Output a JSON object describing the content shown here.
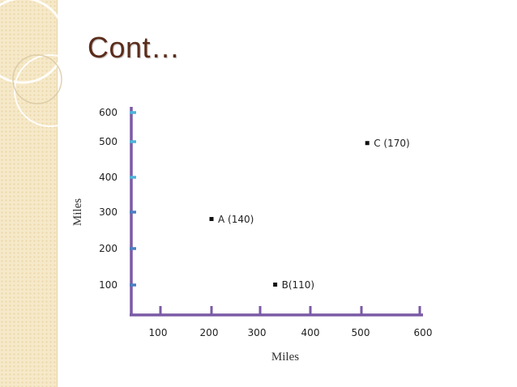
{
  "slide": {
    "title": "Cont…"
  },
  "colors": {
    "axis": "#7a5aa6",
    "tick_blue": "#4a7fc1",
    "tick_cyan": "#4fb3d8",
    "title": "#5b2c1a",
    "sidebar": "#f6e9c9"
  },
  "chart_data": {
    "type": "scatter",
    "xlabel": "Miles",
    "ylabel": "Miles",
    "x_tick_labels": [
      "100",
      "200",
      "300",
      "400",
      "500",
      "600"
    ],
    "y_tick_labels": [
      "100",
      "200",
      "300",
      "400",
      "500",
      "600"
    ],
    "xlim": [
      0,
      600
    ],
    "ylim": [
      0,
      600
    ],
    "grid": false,
    "points": [
      {
        "label": "A (140)",
        "x": 200,
        "y": 280
      },
      {
        "label": "B(110)",
        "x": 330,
        "y": 100
      },
      {
        "label": "C (170)",
        "x": 510,
        "y": 495
      }
    ]
  }
}
